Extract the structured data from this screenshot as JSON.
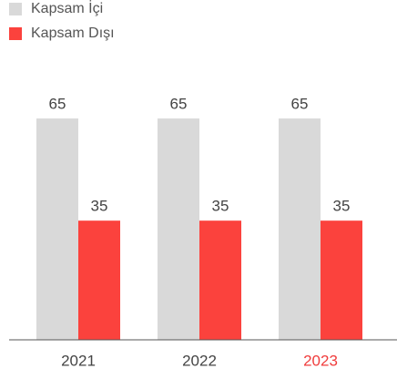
{
  "chart_data": {
    "type": "bar",
    "categories": [
      "2021",
      "2022",
      "2023"
    ],
    "category_label_colors": [
      "#444444",
      "#444444",
      "#f03c3c"
    ],
    "series": [
      {
        "name": "Kapsam İçi",
        "color": "#d9d9d9",
        "values": [
          65,
          65,
          65
        ]
      },
      {
        "name": "Kapsam Dışı",
        "color": "#fb423d",
        "values": [
          35,
          35,
          35
        ]
      }
    ],
    "ylim": [
      0,
      80
    ]
  }
}
